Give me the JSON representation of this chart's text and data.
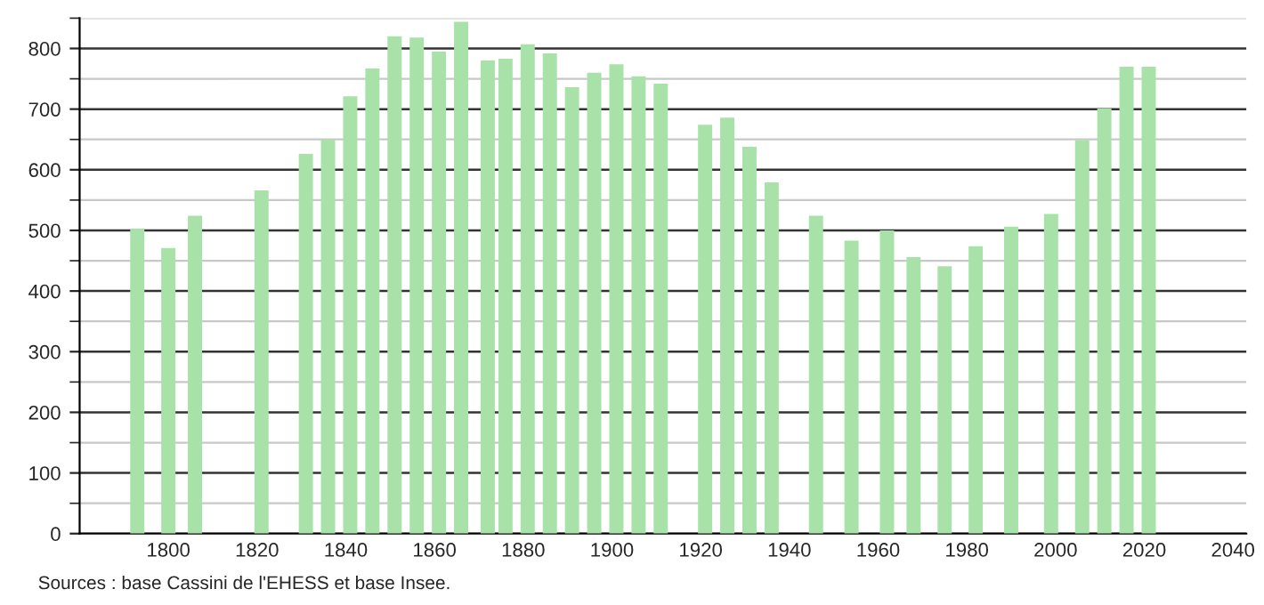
{
  "chart_data": {
    "type": "bar",
    "x": [
      1793,
      1800,
      1806,
      1821,
      1831,
      1836,
      1841,
      1846,
      1851,
      1856,
      1861,
      1866,
      1872,
      1876,
      1881,
      1886,
      1891,
      1896,
      1901,
      1906,
      1911,
      1921,
      1926,
      1931,
      1936,
      1946,
      1954,
      1962,
      1968,
      1975,
      1982,
      1990,
      1999,
      2006,
      2011,
      2016,
      2021
    ],
    "values": [
      503,
      471,
      524,
      566,
      626,
      650,
      721,
      767,
      820,
      818,
      795,
      844,
      780,
      783,
      807,
      792,
      736,
      760,
      774,
      754,
      742,
      674,
      686,
      638,
      579,
      524,
      483,
      500,
      456,
      441,
      474,
      506,
      527,
      649,
      701,
      770,
      770
    ],
    "color": "#a8e2a8",
    "xlim": [
      1780,
      2043
    ],
    "xticks": [
      1800,
      1820,
      1840,
      1860,
      1880,
      1900,
      1920,
      1940,
      1960,
      1980,
      2000,
      2020,
      2040
    ],
    "ylim": [
      0,
      850
    ],
    "yticks": [
      0,
      100,
      200,
      300,
      400,
      500,
      600,
      700,
      800
    ],
    "grid": "y",
    "legend": false,
    "annotations": [
      "Sources : base Cassini de l'EHESS et base Insee."
    ]
  }
}
